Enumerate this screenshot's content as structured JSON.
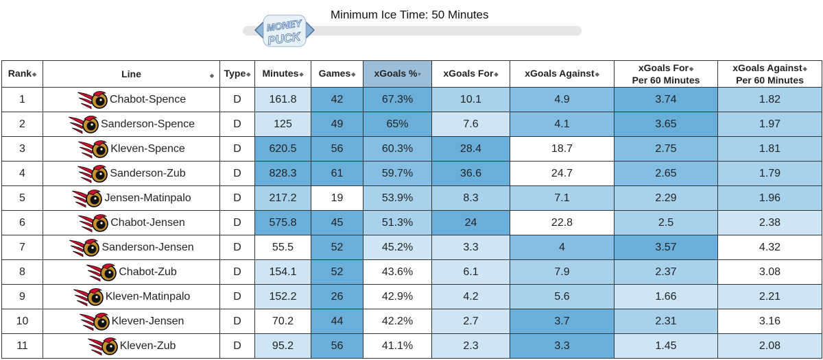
{
  "slider": {
    "title": "Minimum Ice Time: 50 Minutes",
    "logo_text_top": "MONEY",
    "logo_text_bottom": "PUCK"
  },
  "table": {
    "headers": {
      "rank": "Rank",
      "line": "Line",
      "type": "Type",
      "minutes": "Minutes",
      "games": "Games",
      "xg_pct": "xGoals %",
      "xg_for": "xGoals For",
      "xg_against": "xGoals Against",
      "xgf60_line1": "xGoals For",
      "xgf60_line2": "Per 60 Minutes",
      "xga60_line1": "xGoals Against",
      "xga60_line2": "Per 60 Minutes"
    },
    "team_logo": "ottawa-senators-logo",
    "rows": [
      {
        "rank": "1",
        "line": "Chabot-Spence",
        "type": "D",
        "minutes": "161.8",
        "games": "42",
        "xg_pct": "67.3%",
        "xg_for": "10.1",
        "xg_against": "4.9",
        "xgf60": "3.74",
        "xga60": "1.82"
      },
      {
        "rank": "2",
        "line": "Sanderson-Spence",
        "type": "D",
        "minutes": "125",
        "games": "49",
        "xg_pct": "65%",
        "xg_for": "7.6",
        "xg_against": "4.1",
        "xgf60": "3.65",
        "xga60": "1.97"
      },
      {
        "rank": "3",
        "line": "Kleven-Spence",
        "type": "D",
        "minutes": "620.5",
        "games": "56",
        "xg_pct": "60.3%",
        "xg_for": "28.4",
        "xg_against": "18.7",
        "xgf60": "2.75",
        "xga60": "1.81"
      },
      {
        "rank": "4",
        "line": "Sanderson-Zub",
        "type": "D",
        "minutes": "828.3",
        "games": "61",
        "xg_pct": "59.7%",
        "xg_for": "36.6",
        "xg_against": "24.7",
        "xgf60": "2.65",
        "xga60": "1.79"
      },
      {
        "rank": "5",
        "line": "Jensen-Matinpalo",
        "type": "D",
        "minutes": "217.2",
        "games": "19",
        "xg_pct": "53.9%",
        "xg_for": "8.3",
        "xg_against": "7.1",
        "xgf60": "2.29",
        "xga60": "1.96"
      },
      {
        "rank": "6",
        "line": "Chabot-Jensen",
        "type": "D",
        "minutes": "575.8",
        "games": "45",
        "xg_pct": "51.3%",
        "xg_for": "24",
        "xg_against": "22.8",
        "xgf60": "2.5",
        "xga60": "2.38"
      },
      {
        "rank": "7",
        "line": "Sanderson-Jensen",
        "type": "D",
        "minutes": "55.5",
        "games": "52",
        "xg_pct": "45.2%",
        "xg_for": "3.3",
        "xg_against": "4",
        "xgf60": "3.57",
        "xga60": "4.32"
      },
      {
        "rank": "8",
        "line": "Chabot-Zub",
        "type": "D",
        "minutes": "154.1",
        "games": "52",
        "xg_pct": "43.6%",
        "xg_for": "6.1",
        "xg_against": "7.9",
        "xgf60": "2.37",
        "xga60": "3.08"
      },
      {
        "rank": "9",
        "line": "Kleven-Matinpalo",
        "type": "D",
        "minutes": "152.2",
        "games": "26",
        "xg_pct": "42.9%",
        "xg_for": "4.2",
        "xg_against": "5.6",
        "xgf60": "1.66",
        "xga60": "2.21"
      },
      {
        "rank": "10",
        "line": "Kleven-Jensen",
        "type": "D",
        "minutes": "70.2",
        "games": "44",
        "xg_pct": "42.2%",
        "xg_for": "2.7",
        "xg_against": "3.7",
        "xgf60": "2.31",
        "xga60": "3.16"
      },
      {
        "rank": "11",
        "line": "Kleven-Zub",
        "type": "D",
        "minutes": "95.2",
        "games": "56",
        "xg_pct": "41.1%",
        "xg_for": "2.3",
        "xg_against": "3.3",
        "xgf60": "1.45",
        "xga60": "2.08"
      }
    ],
    "cell_colors": [
      {
        "minutes": "#cde5f4",
        "games": "#6aafd9",
        "xg_pct": "#6aafd9",
        "xg_for": "#a8d1ec",
        "xg_against": "#84bee2",
        "xgf60": "#6aafd9",
        "xga60": "#a8d1ec"
      },
      {
        "minutes": "#cde5f4",
        "games": "#6aafd9",
        "xg_pct": "#6aafd9",
        "xg_for": "#cde5f4",
        "xg_against": "#84bee2",
        "xgf60": "#6aafd9",
        "xga60": "#a8d1ec"
      },
      {
        "minutes": "#6aafd9",
        "games": "#6aafd9",
        "xg_pct": "#84bee2",
        "xg_for": "#6aafd9",
        "xg_against": "#ffffff",
        "xgf60": "#84bee2",
        "xga60": "#a8d1ec"
      },
      {
        "minutes": "#6aafd9",
        "games": "#6aafd9",
        "xg_pct": "#84bee2",
        "xg_for": "#6aafd9",
        "xg_against": "#ffffff",
        "xgf60": "#84bee2",
        "xga60": "#a8d1ec"
      },
      {
        "minutes": "#a8d1ec",
        "games": "#ffffff",
        "xg_pct": "#a8d1ec",
        "xg_for": "#a8d1ec",
        "xg_against": "#a8d1ec",
        "xgf60": "#a8d1ec",
        "xga60": "#a8d1ec"
      },
      {
        "minutes": "#6aafd9",
        "games": "#6aafd9",
        "xg_pct": "#a8d1ec",
        "xg_for": "#6aafd9",
        "xg_against": "#ffffff",
        "xgf60": "#a8d1ec",
        "xga60": "#cde5f4"
      },
      {
        "minutes": "#ffffff",
        "games": "#6aafd9",
        "xg_pct": "#cde5f4",
        "xg_for": "#cde5f4",
        "xg_against": "#84bee2",
        "xgf60": "#6aafd9",
        "xga60": "#ffffff"
      },
      {
        "minutes": "#cde5f4",
        "games": "#6aafd9",
        "xg_pct": "#ffffff",
        "xg_for": "#cde5f4",
        "xg_against": "#a8d1ec",
        "xgf60": "#a8d1ec",
        "xga60": "#ffffff"
      },
      {
        "minutes": "#cde5f4",
        "games": "#6aafd9",
        "xg_pct": "#ffffff",
        "xg_for": "#cde5f4",
        "xg_against": "#a8d1ec",
        "xgf60": "#cde5f4",
        "xga60": "#cde5f4"
      },
      {
        "minutes": "#ffffff",
        "games": "#6aafd9",
        "xg_pct": "#ffffff",
        "xg_for": "#cde5f4",
        "xg_against": "#6aafd9",
        "xgf60": "#a8d1ec",
        "xga60": "#ffffff"
      },
      {
        "minutes": "#cde5f4",
        "games": "#6aafd9",
        "xg_pct": "#ffffff",
        "xg_for": "#cde5f4",
        "xg_against": "#6aafd9",
        "xgf60": "#cde5f4",
        "xga60": "#cde5f4"
      }
    ],
    "sorted_header_color": "#9bbfda"
  }
}
